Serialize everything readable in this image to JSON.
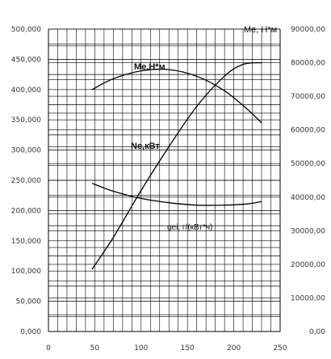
{
  "chart_data": {
    "type": "line",
    "title": "",
    "right_axis_title": "Me, Н*м",
    "x": {
      "range": [
        0,
        250
      ],
      "ticks": [
        "0",
        "50",
        "100",
        "150",
        "200",
        "250"
      ]
    },
    "y_left": {
      "range": [
        0,
        500000
      ],
      "ticks": [
        "0,000",
        "50,000",
        "100,000",
        "150,000",
        "200,000",
        "250,000",
        "300,000",
        "350,000",
        "400,000",
        "450,000",
        "500,000"
      ]
    },
    "y_right": {
      "range": [
        0,
        90000
      ],
      "ticks": [
        "0,00",
        "10000,00",
        "20000,00",
        "30000,00",
        "40000,00",
        "50000,00",
        "60000,00",
        "70000,00",
        "80000,00",
        "90000,00"
      ]
    },
    "grid": true,
    "series": [
      {
        "name": "Me,Н*м",
        "axis": "left",
        "label_weight": "bold",
        "points": [
          [
            47,
            400000
          ],
          [
            70,
            418000
          ],
          [
            100,
            431000
          ],
          [
            130,
            433000
          ],
          [
            160,
            422000
          ],
          [
            190,
            398000
          ],
          [
            215,
            367000
          ],
          [
            230,
            345000
          ]
        ]
      },
      {
        "name": "Ne,кВт",
        "axis": "right",
        "label_weight": "bold",
        "points": [
          [
            47,
            18500
          ],
          [
            70,
            28000
          ],
          [
            100,
            42000
          ],
          [
            130,
            55000
          ],
          [
            160,
            67000
          ],
          [
            190,
            76000
          ],
          [
            210,
            79500
          ],
          [
            230,
            80000
          ]
        ]
      },
      {
        "name": "gei, г/(кВт*ч)",
        "axis": "left",
        "label_weight": "normal",
        "points": [
          [
            47,
            245000
          ],
          [
            70,
            232000
          ],
          [
            100,
            220000
          ],
          [
            130,
            213000
          ],
          [
            160,
            209000
          ],
          [
            190,
            209000
          ],
          [
            215,
            211000
          ],
          [
            230,
            215000
          ]
        ]
      }
    ]
  }
}
